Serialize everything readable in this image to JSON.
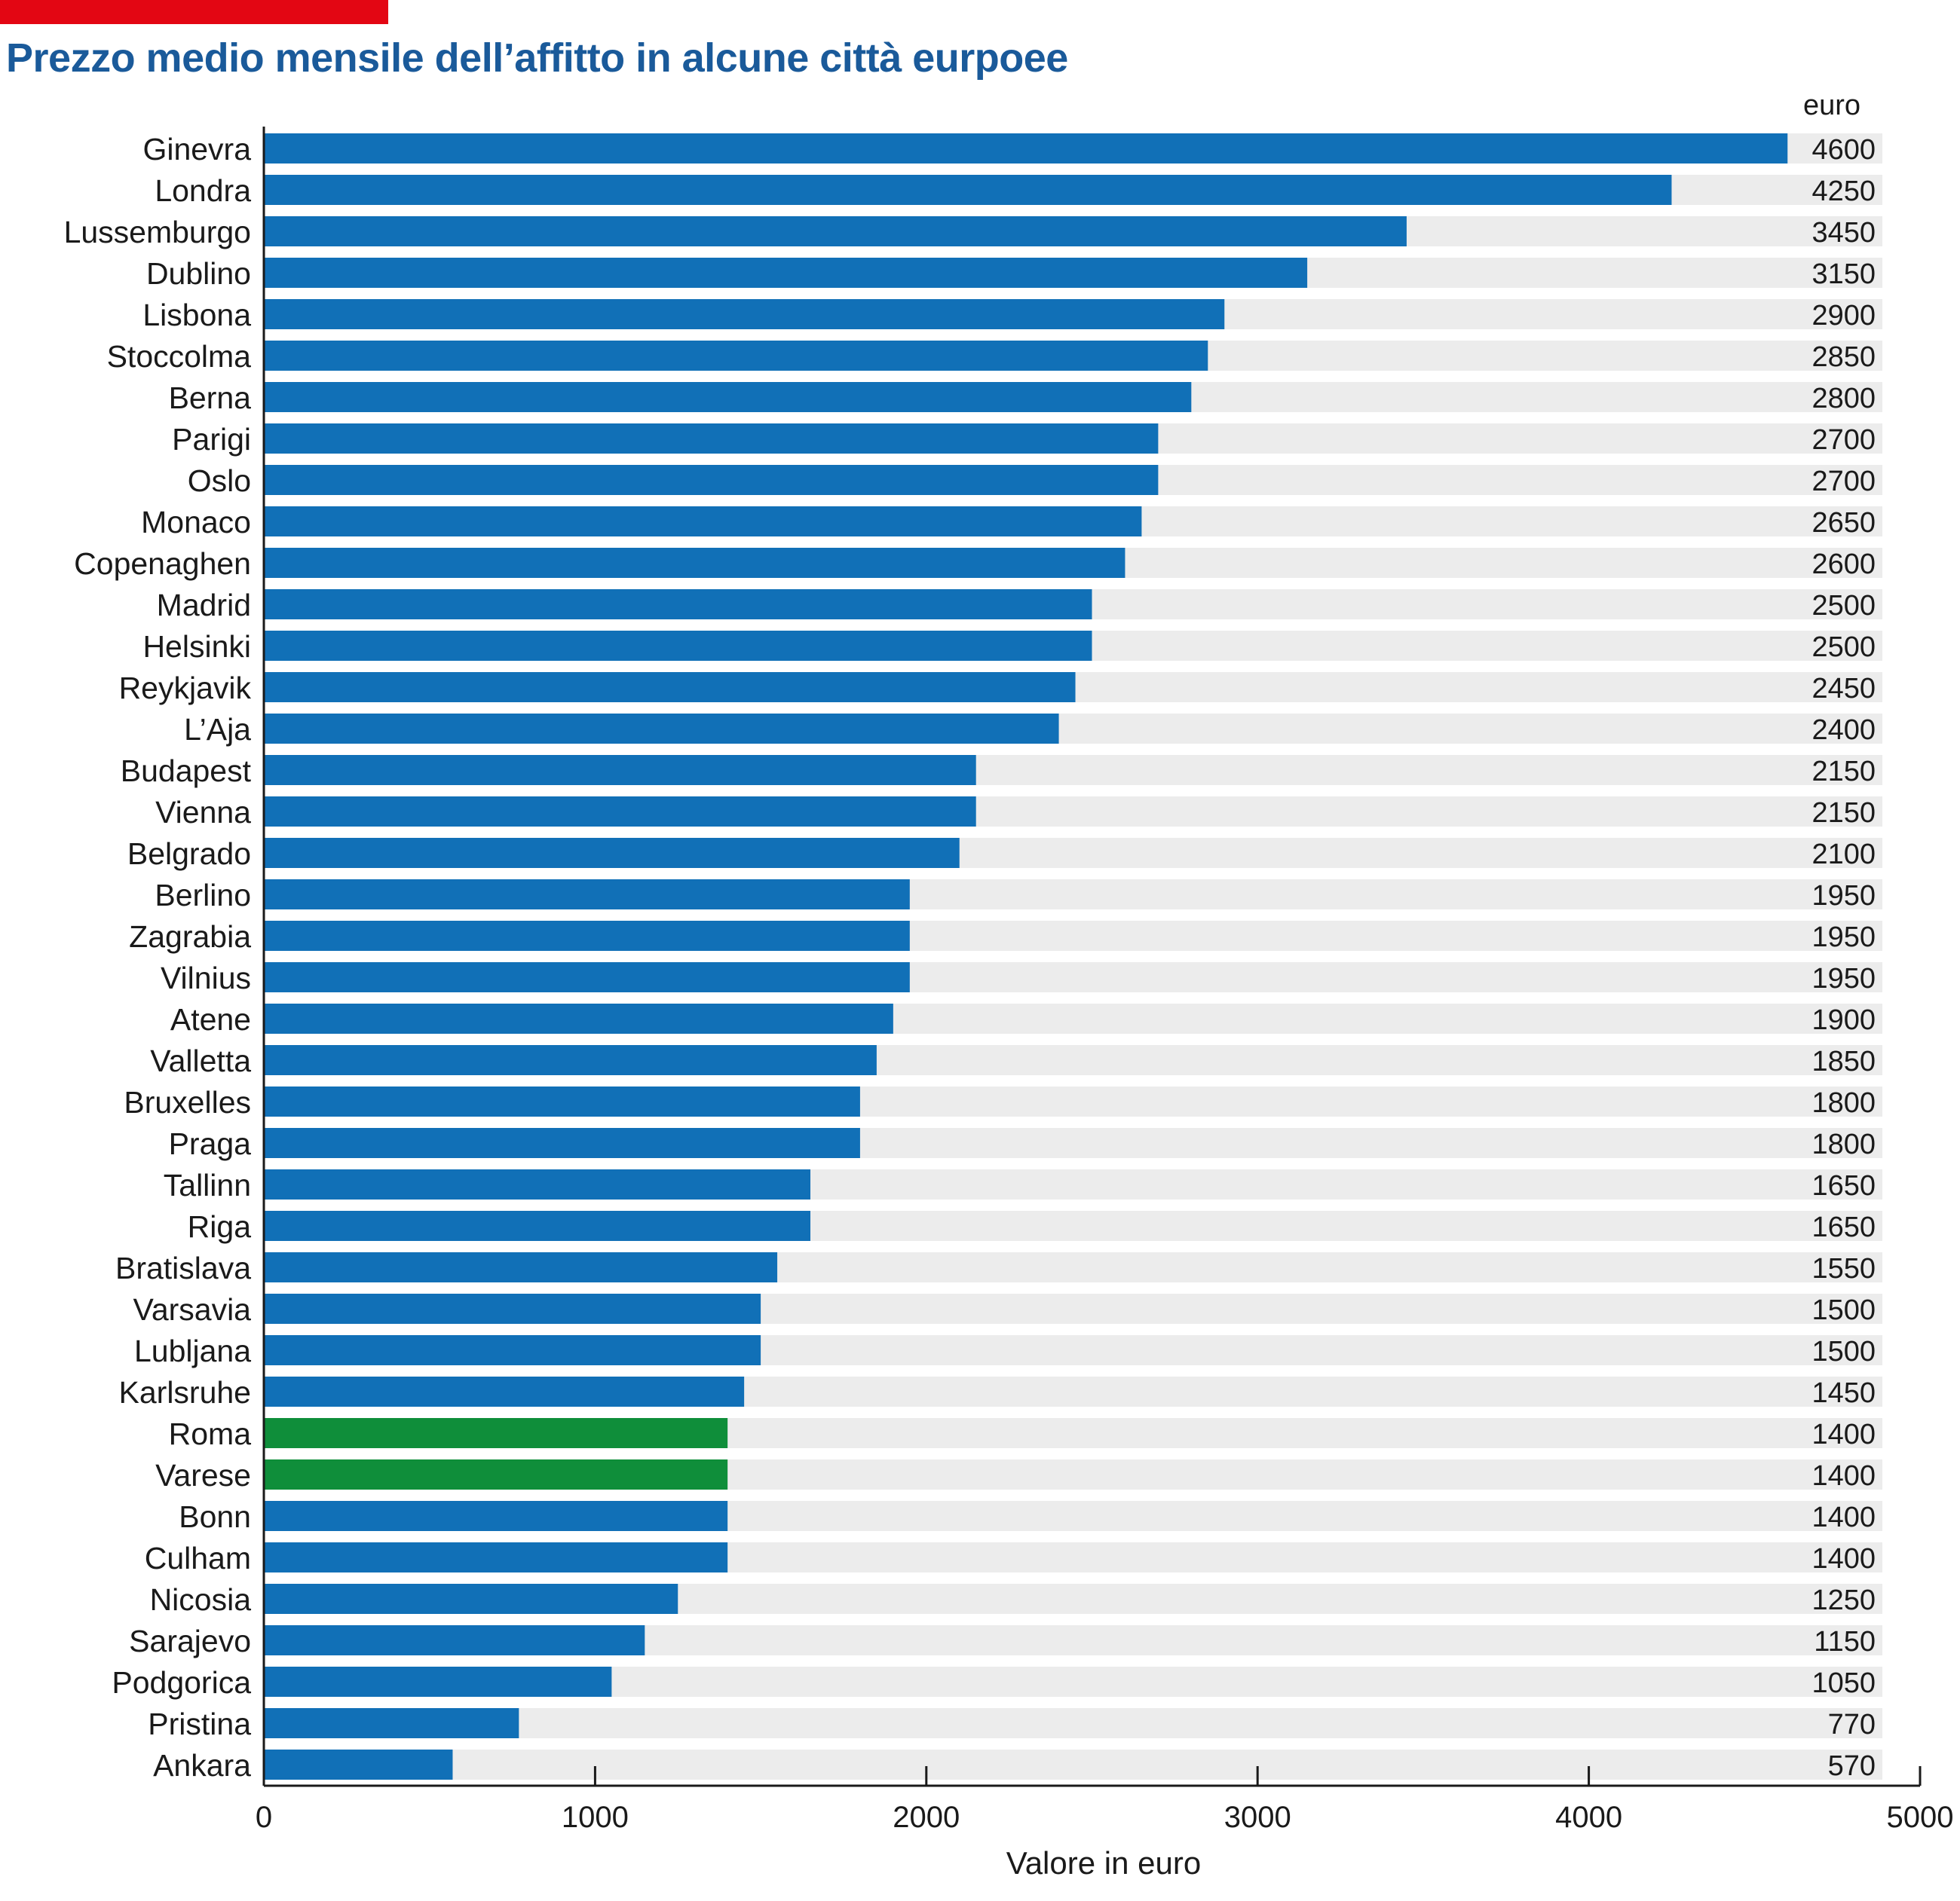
{
  "title": "Prezzo medio mensile dell’affitto in alcune città eurpoee",
  "colors": {
    "accent": "#e30613",
    "bar": "#1170b7",
    "highlight": "#0f8e3a",
    "track": "#ececec",
    "title": "#1a5a9a"
  },
  "chart_data": {
    "type": "bar",
    "orientation": "horizontal",
    "unit_label": "euro",
    "xlabel": "Valore in euro",
    "xlim": [
      0,
      5000
    ],
    "xticks": [
      0,
      1000,
      2000,
      3000,
      4000,
      5000
    ],
    "highlighted": [
      "Roma",
      "Varese"
    ],
    "categories": [
      "Ginevra",
      "Londra",
      "Lussemburgo",
      "Dublino",
      "Lisbona",
      "Stoccolma",
      "Berna",
      "Parigi",
      "Oslo",
      "Monaco",
      "Copenaghen",
      "Madrid",
      "Helsinki",
      "Reykjavik",
      "L’Aja",
      "Budapest",
      "Vienna",
      "Belgrado",
      "Berlino",
      "Zagrabia",
      "Vilnius",
      "Atene",
      "Valletta",
      "Bruxelles",
      "Praga",
      "Tallinn",
      "Riga",
      "Bratislava",
      "Varsavia",
      "Lubljana",
      "Karlsruhe",
      "Roma",
      "Varese",
      "Bonn",
      "Culham",
      "Nicosia",
      "Sarajevo",
      "Podgorica",
      "Pristina",
      "Ankara"
    ],
    "values": [
      4600,
      4250,
      3450,
      3150,
      2900,
      2850,
      2800,
      2700,
      2700,
      2650,
      2600,
      2500,
      2500,
      2450,
      2400,
      2150,
      2150,
      2100,
      1950,
      1950,
      1950,
      1900,
      1850,
      1800,
      1800,
      1650,
      1650,
      1550,
      1500,
      1500,
      1450,
      1400,
      1400,
      1400,
      1400,
      1250,
      1150,
      1050,
      770,
      570
    ]
  }
}
